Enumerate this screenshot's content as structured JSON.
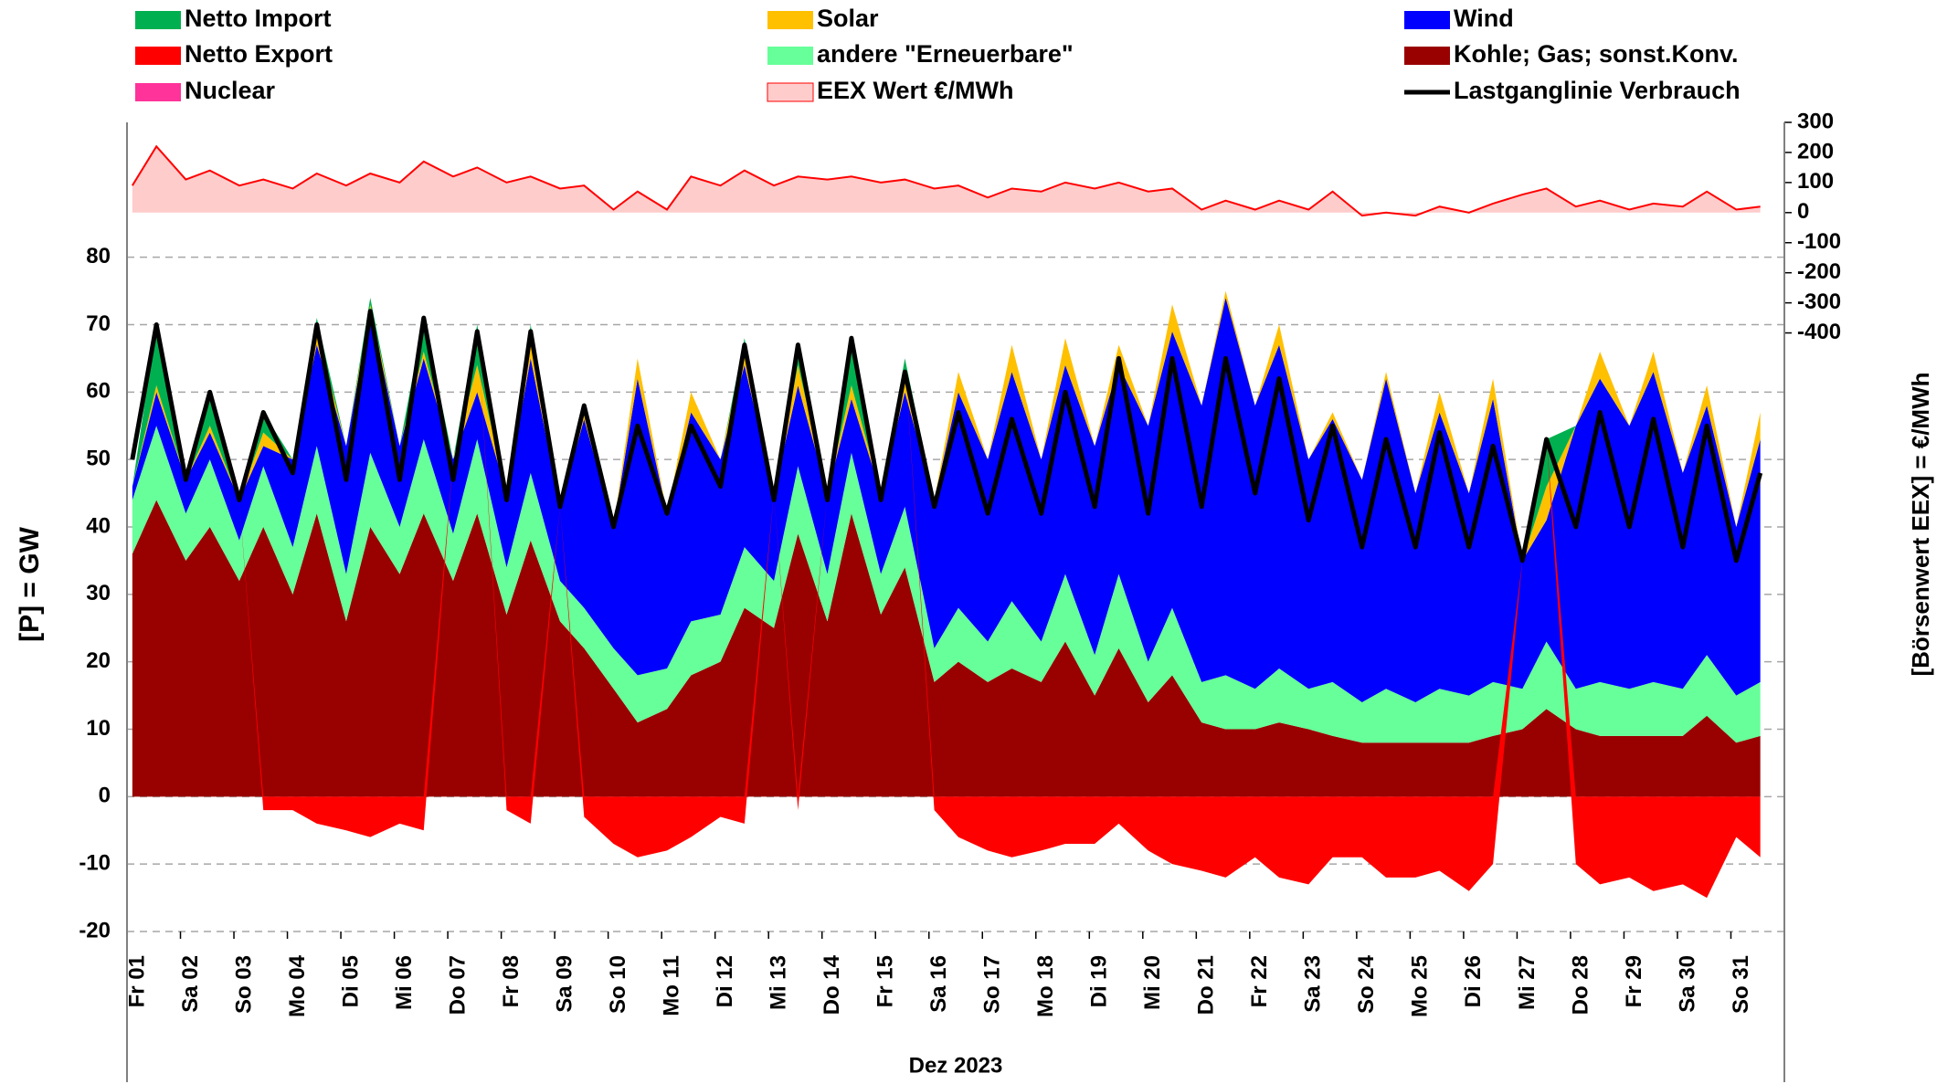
{
  "chart_data": {
    "type": "stacked-area",
    "xlabel": "Dez 2023",
    "ylabel": "[P]  =  GW",
    "y2label": "[Börsenwert  EEX]  = €/MWh",
    "xlim": [
      1,
      32
    ],
    "ylim": [
      -20,
      100
    ],
    "y2lim": [
      -2390,
      300
    ],
    "yticks": [
      -20,
      -10,
      0,
      10,
      20,
      30,
      40,
      50,
      60,
      70,
      80
    ],
    "y2ticks": [
      -400,
      -300,
      -200,
      -100,
      0,
      100,
      200,
      300
    ],
    "negative_tick_color": "#ff0000",
    "grid": true,
    "xticks": [
      {
        "value": 1,
        "label": "Fr 01"
      },
      {
        "value": 2,
        "label": "Sa 02"
      },
      {
        "value": 3,
        "label": "So 03"
      },
      {
        "value": 4,
        "label": "Mo 04"
      },
      {
        "value": 5,
        "label": "Di 05"
      },
      {
        "value": 6,
        "label": "Mi 06"
      },
      {
        "value": 7,
        "label": "Do 07"
      },
      {
        "value": 8,
        "label": "Fr 08"
      },
      {
        "value": 9,
        "label": "Sa 09"
      },
      {
        "value": 10,
        "label": "So 10"
      },
      {
        "value": 11,
        "label": "Mo 11"
      },
      {
        "value": 12,
        "label": "Di 12"
      },
      {
        "value": 13,
        "label": "Mi 13"
      },
      {
        "value": 14,
        "label": "Do 14"
      },
      {
        "value": 15,
        "label": "Fr 15"
      },
      {
        "value": 16,
        "label": "Sa 16"
      },
      {
        "value": 17,
        "label": "So 17"
      },
      {
        "value": 18,
        "label": "Mo 18"
      },
      {
        "value": 19,
        "label": "Di 19"
      },
      {
        "value": 20,
        "label": "Mi 20"
      },
      {
        "value": 21,
        "label": "Do 21"
      },
      {
        "value": 22,
        "label": "Fr 22"
      },
      {
        "value": 23,
        "label": "Sa 23"
      },
      {
        "value": 24,
        "label": "So 24"
      },
      {
        "value": 25,
        "label": "Mo 25"
      },
      {
        "value": 26,
        "label": "Di 26"
      },
      {
        "value": 27,
        "label": "Mi 27"
      },
      {
        "value": 28,
        "label": "Do 28"
      },
      {
        "value": 29,
        "label": "Fr 29"
      },
      {
        "value": 30,
        "label": "Sa 30"
      },
      {
        "value": 31,
        "label": "So 31"
      }
    ],
    "x": [
      1.1,
      1.55,
      2.1,
      2.55,
      3.1,
      3.55,
      4.1,
      4.55,
      5.1,
      5.55,
      6.1,
      6.55,
      7.1,
      7.55,
      8.1,
      8.55,
      9.1,
      9.55,
      10.1,
      10.55,
      11.1,
      11.55,
      12.1,
      12.55,
      13.1,
      13.55,
      14.1,
      14.55,
      15.1,
      15.55,
      16.1,
      16.55,
      17.1,
      17.55,
      18.1,
      18.55,
      19.1,
      19.55,
      20.1,
      20.55,
      21.1,
      21.55,
      22.1,
      22.55,
      23.1,
      23.55,
      24.1,
      24.55,
      25.1,
      25.55,
      26.1,
      26.55,
      27.1,
      27.55,
      28.1,
      28.55,
      29.1,
      29.55,
      30.1,
      30.55,
      31.1,
      31.55
    ],
    "series": [
      {
        "name": "Kohle; Gas; sonst.Konv.",
        "color": "#990000",
        "kind": "area",
        "stacked": true,
        "values": [
          36,
          44,
          35,
          40,
          32,
          40,
          30,
          42,
          26,
          40,
          33,
          42,
          32,
          42,
          27,
          38,
          26,
          22,
          16,
          11,
          13,
          18,
          20,
          28,
          25,
          39,
          26,
          42,
          27,
          34,
          17,
          20,
          17,
          19,
          17,
          23,
          15,
          22,
          14,
          18,
          11,
          10,
          10,
          11,
          10,
          9,
          8,
          8,
          8,
          8,
          8,
          9,
          10,
          13,
          10,
          9,
          9,
          9,
          9,
          12,
          8,
          9
        ]
      },
      {
        "name": "Nuclear",
        "color": "#ff3399",
        "kind": "area",
        "stacked": true,
        "values": [
          0,
          0,
          0,
          0,
          0,
          0,
          0,
          0,
          0,
          0,
          0,
          0,
          0,
          0,
          0,
          0,
          0,
          0,
          0,
          0,
          0,
          0,
          0,
          0,
          0,
          0,
          0,
          0,
          0,
          0,
          0,
          0,
          0,
          0,
          0,
          0,
          0,
          0,
          0,
          0,
          0,
          0,
          0,
          0,
          0,
          0,
          0,
          0,
          0,
          0,
          0,
          0,
          0,
          0,
          0,
          0,
          0,
          0,
          0,
          0,
          0,
          0
        ]
      },
      {
        "name": "andere \"Erneuerbare\"",
        "color": "#66ff99",
        "kind": "area",
        "stacked": true,
        "values": [
          8,
          11,
          7,
          10,
          6,
          9,
          7,
          10,
          7,
          11,
          7,
          11,
          7,
          11,
          7,
          10,
          6,
          6,
          6,
          7,
          6,
          8,
          7,
          9,
          7,
          10,
          7,
          9,
          6,
          9,
          5,
          8,
          6,
          10,
          6,
          10,
          6,
          11,
          6,
          10,
          6,
          8,
          6,
          8,
          6,
          8,
          6,
          8,
          6,
          8,
          7,
          8,
          6,
          10,
          6,
          8,
          7,
          8,
          7,
          9,
          7,
          8
        ]
      },
      {
        "name": "Wind",
        "color": "#0000ff",
        "kind": "area",
        "stacked": true,
        "values": [
          2,
          5,
          5,
          4,
          6,
          3,
          13,
          15,
          19,
          21,
          12,
          12,
          11,
          7,
          11,
          17,
          11,
          28,
          18,
          44,
          23,
          31,
          23,
          27,
          13,
          12,
          12,
          8,
          12,
          17,
          22,
          32,
          27,
          34,
          27,
          31,
          31,
          31,
          35,
          41,
          41,
          56,
          42,
          48,
          34,
          39,
          33,
          46,
          31,
          41,
          30,
          42,
          19,
          18,
          39,
          45,
          39,
          46,
          32,
          37,
          25,
          36
        ]
      },
      {
        "name": "Solar",
        "color": "#ffc000",
        "kind": "area",
        "stacked": true,
        "values": [
          0,
          1,
          0,
          1,
          0,
          2,
          0,
          2,
          0,
          1,
          0,
          1,
          0,
          4,
          0,
          3,
          0,
          2,
          0,
          3,
          0,
          3,
          0,
          3,
          0,
          3,
          0,
          2,
          0,
          2,
          0,
          3,
          0,
          4,
          0,
          4,
          0,
          3,
          0,
          4,
          0,
          1,
          0,
          3,
          0,
          1,
          0,
          1,
          0,
          3,
          0,
          3,
          0,
          5,
          0,
          4,
          0,
          3,
          0,
          3,
          0,
          4
        ]
      },
      {
        "name": "Netto Import",
        "color": "#00b050",
        "kind": "area",
        "stacked": true,
        "values": [
          0,
          9,
          0,
          5,
          0,
          3,
          0,
          2,
          0,
          1,
          0,
          5,
          0,
          6,
          0,
          2,
          0,
          0,
          0,
          0,
          0,
          0,
          0,
          1,
          0,
          3,
          0,
          6,
          0,
          3,
          0,
          0,
          0,
          0,
          0,
          0,
          0,
          0,
          0,
          0,
          0,
          0,
          0,
          0,
          0,
          0,
          0,
          0,
          0,
          0,
          0,
          0,
          0,
          7,
          0,
          0,
          0,
          0,
          0,
          0,
          0,
          0
        ]
      },
      {
        "name": "Netto Export",
        "color": "#ff0000",
        "kind": "area",
        "stacked": true,
        "values": [
          0,
          0,
          0,
          0,
          0,
          -2,
          -2,
          -4,
          -5,
          -6,
          -4,
          -5,
          0,
          0,
          -2,
          -4,
          0,
          -3,
          -7,
          -9,
          -8,
          -6,
          -3,
          -4,
          0,
          -2,
          0,
          0,
          0,
          0,
          -2,
          -6,
          -8,
          -9,
          -8,
          -7,
          -7,
          -4,
          -8,
          -10,
          -11,
          -12,
          -9,
          -12,
          -13,
          -9,
          -9,
          -12,
          -12,
          -11,
          -14,
          -10,
          0,
          0,
          -10,
          -13,
          -12,
          -14,
          -13,
          -15,
          -6,
          -9
        ]
      },
      {
        "name": "EEX Wert €/MWh",
        "color": "#ffcccc",
        "line_color": "#ff0000",
        "kind": "area",
        "axis": "y2",
        "values": [
          90,
          220,
          110,
          140,
          90,
          110,
          80,
          130,
          90,
          130,
          100,
          170,
          120,
          150,
          100,
          120,
          80,
          90,
          10,
          70,
          10,
          120,
          90,
          140,
          90,
          120,
          110,
          120,
          100,
          110,
          80,
          90,
          50,
          80,
          70,
          100,
          80,
          100,
          70,
          80,
          10,
          40,
          10,
          40,
          10,
          70,
          -10,
          0,
          -10,
          20,
          0,
          30,
          60,
          80,
          20,
          40,
          10,
          30,
          20,
          70,
          10,
          20
        ]
      },
      {
        "name": "Lastganglinie Verbrauch",
        "color": "#000000",
        "kind": "line",
        "values": [
          50,
          70,
          47,
          60,
          44,
          57,
          48,
          70,
          47,
          72,
          47,
          71,
          47,
          69,
          44,
          69,
          43,
          58,
          40,
          55,
          42,
          55,
          46,
          67,
          44,
          67,
          44,
          68,
          44,
          63,
          43,
          57,
          42,
          56,
          42,
          60,
          43,
          65,
          42,
          65,
          43,
          65,
          45,
          62,
          41,
          55,
          37,
          53,
          37,
          54,
          37,
          52,
          35,
          53,
          40,
          57,
          40,
          56,
          37,
          55,
          35,
          48
        ]
      }
    ]
  }
}
